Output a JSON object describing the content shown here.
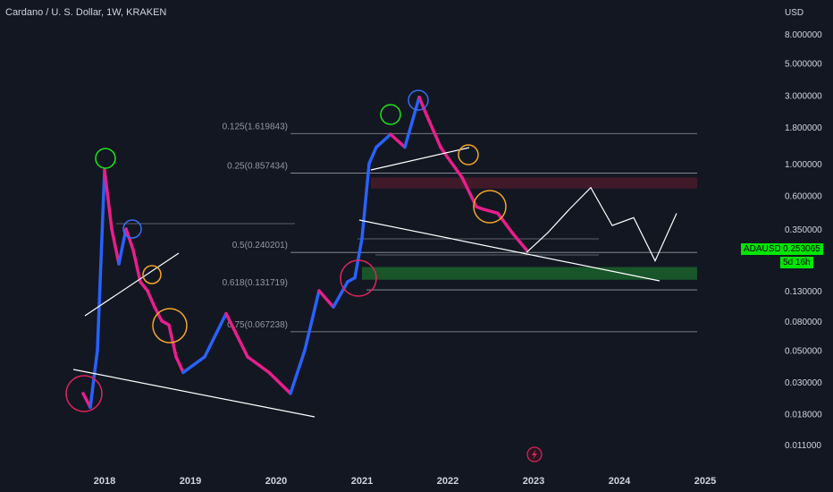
{
  "title": "Cardano / U. S. Dollar, 1W, KRAKEN",
  "price_axis": {
    "unit": "USD",
    "ticks": [
      {
        "label": "8.000000",
        "v": 8.0
      },
      {
        "label": "5.000000",
        "v": 5.0
      },
      {
        "label": "3.000000",
        "v": 3.0
      },
      {
        "label": "1.800000",
        "v": 1.8
      },
      {
        "label": "1.000000",
        "v": 1.0
      },
      {
        "label": "0.600000",
        "v": 0.6
      },
      {
        "label": "0.350000",
        "v": 0.35
      },
      {
        "label": "0.130000",
        "v": 0.13
      },
      {
        "label": "0.080000",
        "v": 0.08
      },
      {
        "label": "0.050000",
        "v": 0.05
      },
      {
        "label": "0.030000",
        "v": 0.03
      },
      {
        "label": "0.018000",
        "v": 0.018
      },
      {
        "label": "0.011000",
        "v": 0.011
      }
    ]
  },
  "time_axis": {
    "ticks": [
      "2018",
      "2019",
      "2020",
      "2021",
      "2022",
      "2023",
      "2024",
      "2025"
    ]
  },
  "symbol_tag": {
    "symbol": "ADAUSD",
    "price": "0.253065",
    "countdown": "5d 16h",
    "color": "#00e600"
  },
  "colors": {
    "background": "#131722",
    "up": "#2962ff",
    "down": "#e91e8c",
    "supply": "#7a1f35",
    "demand": "#1b6b2c",
    "orange": "#f5a623",
    "green_circle": "#19e619",
    "blue_circle": "#3a6df0",
    "red_circle": "#e0245e"
  },
  "chart_data": {
    "type": "line",
    "scale": "log",
    "series": [
      {
        "x": [
          "2017-10",
          "2017-11",
          "2017-12",
          "2018-01",
          "2018-02",
          "2018-03",
          "2018-04",
          "2018-05",
          "2018-06",
          "2018-07",
          "2018-08",
          "2018-09",
          "2018-10",
          "2018-11",
          "2018-12",
          "2019-03",
          "2019-06",
          "2019-09",
          "2019-12",
          "2020-03",
          "2020-05",
          "2020-07",
          "2020-09",
          "2020-11",
          "2020-12",
          "2021-01",
          "2021-02",
          "2021-03",
          "2021-05",
          "2021-07",
          "2021-09",
          "2021-10",
          "2021-12",
          "2022-01",
          "2022-03",
          "2022-05",
          "2022-06",
          "2022-08",
          "2022-10",
          "2022-12"
        ],
        "y": [
          0.025,
          0.02,
          0.05,
          0.9,
          0.35,
          0.2,
          0.35,
          0.25,
          0.15,
          0.13,
          0.1,
          0.08,
          0.075,
          0.045,
          0.035,
          0.045,
          0.09,
          0.045,
          0.035,
          0.025,
          0.05,
          0.13,
          0.1,
          0.15,
          0.16,
          0.3,
          1.0,
          1.3,
          1.6,
          1.3,
          2.9,
          2.2,
          1.3,
          1.1,
          0.8,
          0.5,
          0.48,
          0.45,
          0.33,
          0.25
        ]
      }
    ],
    "fib_levels": [
      {
        "label": "0.125(1.619843)",
        "v": 1.619843
      },
      {
        "label": "0.25(0.857434)",
        "v": 0.857434
      },
      {
        "label": "0.5(0.240201)",
        "v": 0.240201
      },
      {
        "label": "0.618(0.131719)",
        "v": 0.131719
      },
      {
        "label": "0.75(0.067238)",
        "v": 0.067238
      }
    ],
    "zones": [
      {
        "type": "supply",
        "from": 0.67,
        "to": 0.8
      },
      {
        "type": "demand",
        "from": 0.155,
        "to": 0.19
      }
    ],
    "projection": {
      "x": [
        "2022-12",
        "2023-03",
        "2023-06",
        "2023-09",
        "2023-12",
        "2024-03",
        "2024-06",
        "2024-09"
      ],
      "y": [
        0.24,
        0.33,
        0.48,
        0.68,
        0.37,
        0.42,
        0.21,
        0.45
      ]
    }
  }
}
